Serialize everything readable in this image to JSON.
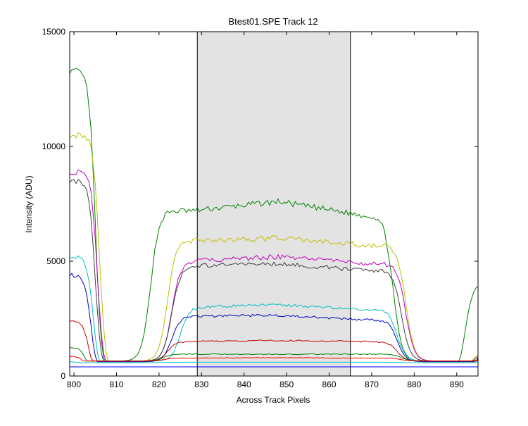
{
  "chart_data": {
    "type": "line",
    "title": "Btest01.SPE   Track 12",
    "xlabel": "Across Track Pixels",
    "ylabel": "Intensity (ADU)",
    "xlim": [
      799,
      895
    ],
    "ylim": [
      0,
      15000
    ],
    "xticks": [
      800,
      810,
      820,
      830,
      840,
      850,
      860,
      870,
      880,
      890
    ],
    "yticks": [
      0,
      5000,
      10000,
      15000
    ],
    "grid": false,
    "legend": "none",
    "highlight_region": {
      "x_start": 829,
      "x_end": 865,
      "color": "#e3e3e3"
    },
    "series": [
      {
        "color": "#007f00",
        "left_start": 13300,
        "left_edge": 805.0,
        "peak_start": 7200,
        "peak_mid": 7600,
        "peak_end": 7000,
        "rise_start": 815.0,
        "fall_end": 878.0,
        "bottom": 650,
        "right_rise": 890.0,
        "right_end": 4000
      },
      {
        "color": "#bfbf00",
        "left_start": 10500,
        "left_edge": 806.0,
        "peak_start": 5900,
        "peak_mid": 6000,
        "peak_end": 5700,
        "rise_start": 819.0,
        "fall_end": 881.0,
        "bottom": 650,
        "right_rise": 891.0,
        "right_end": 1000
      },
      {
        "color": "#bf00bf",
        "left_start": 8900,
        "left_edge": 805.5,
        "peak_start": 5000,
        "peak_mid": 5200,
        "peak_end": 4900,
        "rise_start": 820.0,
        "fall_end": 881.0,
        "bottom": 650,
        "right_rise": 891.0,
        "right_end": 900
      },
      {
        "color": "#404040",
        "left_start": 8500,
        "left_edge": 805.0,
        "peak_start": 4800,
        "peak_mid": 4900,
        "peak_end": 4600,
        "rise_start": 820.0,
        "fall_end": 880.0,
        "bottom": 650,
        "right_rise": 891.0,
        "right_end": 900
      },
      {
        "color": "#00bfbf",
        "left_start": 5200,
        "left_edge": 804.5,
        "peak_start": 3000,
        "peak_mid": 3100,
        "peak_end": 2900,
        "rise_start": 822.0,
        "fall_end": 879.0,
        "bottom": 650,
        "right_rise": 892.0,
        "right_end": 800
      },
      {
        "color": "#0000bf",
        "left_start": 4400,
        "left_edge": 804.0,
        "peak_start": 2600,
        "peak_mid": 2650,
        "peak_end": 2450,
        "rise_start": 820.0,
        "fall_end": 879.0,
        "bottom": 620,
        "right_rise": 892.0,
        "right_end": 1000
      },
      {
        "color": "#bf0000",
        "left_start": 2400,
        "left_edge": 803.5,
        "peak_start": 1500,
        "peak_mid": 1550,
        "peak_end": 1500,
        "rise_start": 819.0,
        "fall_end": 879.0,
        "bottom": 650,
        "right_rise": 891.0,
        "right_end": 800
      },
      {
        "color": "#007f00",
        "left_start": 1250,
        "left_edge": 803.0,
        "peak_start": 950,
        "peak_mid": 950,
        "peak_end": 950,
        "rise_start": 818.0,
        "fall_end": 880.0,
        "bottom": 650,
        "right_rise": 891.0,
        "right_end": 750
      },
      {
        "color": "#ff0000",
        "left_start": 850,
        "left_edge": 803.0,
        "peak_start": 780,
        "peak_mid": 800,
        "peak_end": 780,
        "rise_start": 818.0,
        "fall_end": 880.0,
        "bottom": 650,
        "right_rise": 891.0,
        "right_end": 700
      },
      {
        "color": "#00bfbf",
        "left_start": 620,
        "left_edge": 803.0,
        "peak_start": 600,
        "peak_mid": 600,
        "peak_end": 600,
        "rise_start": 818.0,
        "fall_end": 880.0,
        "bottom": 580,
        "right_rise": 891.0,
        "right_end": 600
      },
      {
        "color": "#0000ff",
        "left_start": 400,
        "left_edge": 803.0,
        "peak_start": 400,
        "peak_mid": 400,
        "peak_end": 400,
        "rise_start": 818.0,
        "fall_end": 880.0,
        "bottom": 400,
        "right_rise": 891.0,
        "right_end": 400
      }
    ]
  }
}
